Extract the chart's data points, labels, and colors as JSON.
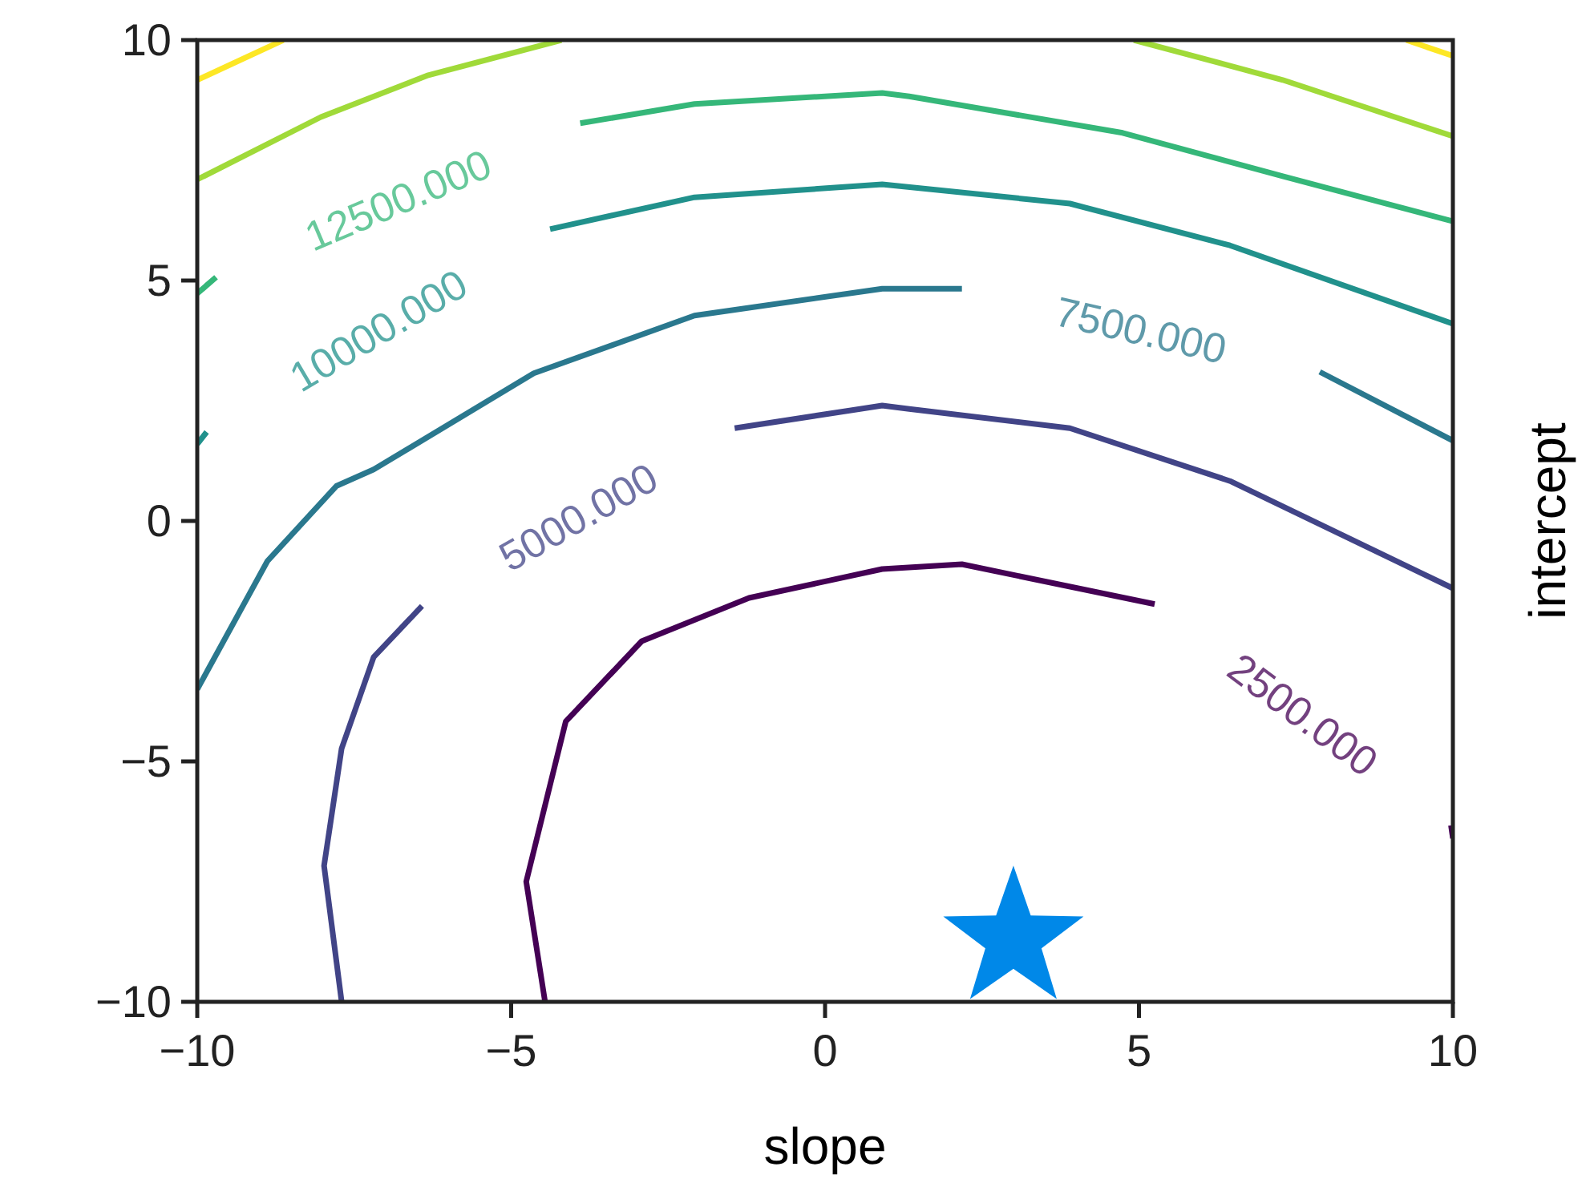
{
  "chart_data": {
    "type": "line",
    "xlabel": "slope",
    "ylabel": "intercept",
    "xlim": [
      -10,
      10
    ],
    "ylim": [
      -10,
      10
    ],
    "xticks": [
      {
        "value": -10,
        "label": "−10"
      },
      {
        "value": -5,
        "label": "−5"
      },
      0,
      5,
      10
    ],
    "yticks": [
      {
        "value": -10,
        "label": "−10"
      },
      {
        "value": -5,
        "label": "−5"
      },
      0,
      5,
      10
    ],
    "series": [
      {
        "name": "2500.000",
        "color": "#440154",
        "x": [
          -4.46,
          -4.76,
          -4.13,
          -2.92,
          -1.21,
          0.91,
          2.18,
          5.25,
          7.6,
          9.97,
          10
        ],
        "values": [
          -10,
          -7.5,
          -4.17,
          -2.5,
          -1.6,
          -1.0,
          -0.9,
          -1.73,
          null,
          -6.33,
          -6.6
        ]
      },
      {
        "name": "5000.000",
        "color": "#414487",
        "x": [
          -7.7,
          -7.98,
          -7.7,
          -7.19,
          -6.42,
          -4.0,
          -1.44,
          0.91,
          1.34,
          3.9,
          6.45,
          10
        ],
        "values": [
          -10,
          -7.17,
          -4.73,
          -2.83,
          -1.77,
          null,
          1.93,
          2.4,
          2.33,
          1.93,
          0.83,
          -1.4
        ]
      },
      {
        "name": "7500.000",
        "color": "#2a788e",
        "x": [
          -10,
          -8.88,
          -7.78,
          -7.19,
          -4.64,
          -2.08,
          0.91,
          2.18,
          5.0,
          7.88,
          10
        ],
        "values": [
          -3.5,
          -0.83,
          0.73,
          1.07,
          3.07,
          4.27,
          4.83,
          4.83,
          null,
          3.1,
          1.67
        ]
      },
      {
        "name": "10000.000",
        "color": "#21918c",
        "x": [
          -10,
          -9.85,
          -7.0,
          -4.38,
          -2.08,
          0.91,
          3.9,
          6.45,
          10
        ],
        "values": [
          1.6,
          1.85,
          null,
          6.07,
          6.73,
          7.0,
          6.6,
          5.73,
          4.1
        ]
      },
      {
        "name": "12500.000",
        "color": "#35b779",
        "x": [
          -10,
          -9.7,
          -7.0,
          -3.9,
          -2.08,
          0.91,
          1.34,
          4.74,
          7.29,
          10
        ],
        "values": [
          4.73,
          5.07,
          null,
          8.27,
          8.67,
          8.9,
          8.83,
          8.07,
          7.17,
          6.23
        ]
      },
      {
        "color": "#a0da39",
        "x": [
          -10,
          -8.03,
          -6.32,
          -4.2,
          0,
          4.92,
          7.29,
          10
        ],
        "values": [
          7.1,
          8.4,
          9.27,
          10,
          null,
          10,
          9.17,
          8.0
        ]
      },
      {
        "color": "#fde725",
        "x": [
          -10,
          -8.63,
          0,
          9.26,
          10
        ],
        "values": [
          9.17,
          10,
          null,
          10,
          9.67
        ]
      },
      {
        "type": "scatter",
        "marker": "star",
        "color": "#0088e8",
        "x": [
          3.0
        ],
        "values": [
          -8.7
        ]
      }
    ]
  }
}
